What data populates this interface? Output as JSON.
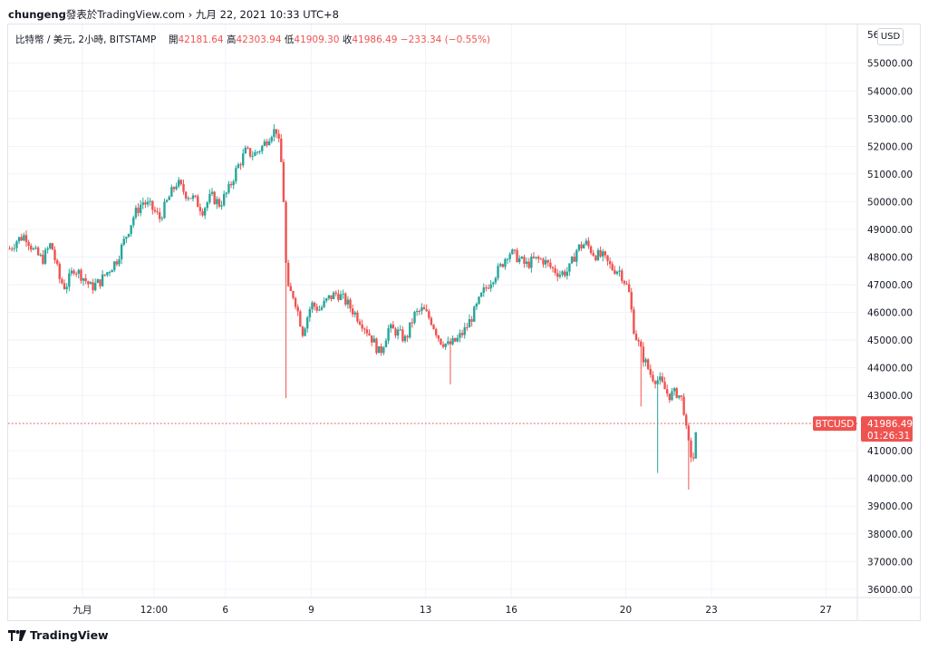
{
  "header": {
    "author": "chungeng",
    "published_text": "發表於TradingView.com",
    "separator": "›",
    "datetime": "九月 22, 2021 10:33 UTC+8"
  },
  "legend": {
    "symbol_text": "比特幣 / 美元, 2小時, BITSTAMP",
    "open_label": "開",
    "open_value": "42181.64",
    "high_label": "高",
    "high_value": "42303.94",
    "low_label": "低",
    "low_value": "41909.30",
    "close_label": "收",
    "close_value": "41986.49",
    "change_text": "−233.34 (−0.55%)"
  },
  "price_axis": {
    "currency_badge": "USD",
    "top_partial_label": "56"
  },
  "last_price": {
    "symbol_tag": "BTCUSD",
    "price": "41986.49",
    "countdown": "01:26:31"
  },
  "branding": {
    "logo_text": "TradingView"
  },
  "colors": {
    "up": "#26a69a",
    "down": "#ef5350",
    "grid": "#f0f3fa",
    "text": "#131722"
  },
  "chart_data": {
    "type": "candlestick",
    "title": "",
    "ylim": [
      35700,
      56400
    ],
    "y_ticks": [
      36000,
      37000,
      38000,
      39000,
      40000,
      41000,
      42000,
      43000,
      44000,
      45000,
      46000,
      47000,
      48000,
      49000,
      50000,
      51000,
      52000,
      53000,
      54000,
      55000
    ],
    "y_tick_labels": [
      "36000.00",
      "37000.00",
      "38000.00",
      "39000.00",
      "40000.00",
      "41000.00",
      "42000.00",
      "43000.00",
      "44000.00",
      "45000.00",
      "46000.00",
      "47000.00",
      "48000.00",
      "49000.00",
      "50000.00",
      "51000.00",
      "52000.00",
      "53000.00",
      "54000.00",
      "55000.00"
    ],
    "x_ticks": [
      "九月",
      "12:00",
      "6",
      "9",
      "13",
      "16",
      "20",
      "23",
      "27"
    ],
    "x_tick_days": [
      1,
      3.5,
      6,
      9,
      13,
      16,
      20,
      23,
      27
    ],
    "x_range_days": [
      -1.6,
      28.1
    ],
    "grid": true,
    "last_price": 41986.49,
    "path": [
      [
        -1.55,
        48300
      ],
      [
        -1.3,
        48600
      ],
      [
        -1.0,
        48800
      ],
      [
        -0.7,
        48200
      ],
      [
        -0.4,
        47900
      ],
      [
        -0.1,
        48500
      ],
      [
        0.2,
        47200
      ],
      [
        0.4,
        46900
      ],
      [
        0.7,
        47600
      ],
      [
        1.0,
        47300
      ],
      [
        1.3,
        46900
      ],
      [
        1.6,
        47100
      ],
      [
        1.9,
        47500
      ],
      [
        2.2,
        47900
      ],
      [
        2.5,
        48700
      ],
      [
        2.8,
        49500
      ],
      [
        3.1,
        50000
      ],
      [
        3.4,
        49800
      ],
      [
        3.7,
        49400
      ],
      [
        4.0,
        50100
      ],
      [
        4.3,
        50700
      ],
      [
        4.6,
        50300
      ],
      [
        4.9,
        50100
      ],
      [
        5.2,
        49700
      ],
      [
        5.5,
        50200
      ],
      [
        5.8,
        49900
      ],
      [
        6.1,
        50400
      ],
      [
        6.4,
        51200
      ],
      [
        6.7,
        51800
      ],
      [
        7.0,
        51700
      ],
      [
        7.3,
        52000
      ],
      [
        7.6,
        52500
      ],
      [
        7.8,
        52600
      ],
      [
        8.0,
        51000
      ],
      [
        8.15,
        46800
      ],
      [
        8.4,
        46600
      ],
      [
        8.7,
        45300
      ],
      [
        9.0,
        46300
      ],
      [
        9.3,
        46100
      ],
      [
        9.6,
        46500
      ],
      [
        9.9,
        46700
      ],
      [
        10.2,
        46400
      ],
      [
        10.5,
        46000
      ],
      [
        10.8,
        45600
      ],
      [
        11.1,
        45100
      ],
      [
        11.4,
        44500
      ],
      [
        11.7,
        45400
      ],
      [
        12.0,
        45300
      ],
      [
        12.3,
        45000
      ],
      [
        12.6,
        45900
      ],
      [
        12.9,
        46100
      ],
      [
        13.2,
        45700
      ],
      [
        13.5,
        45000
      ],
      [
        13.8,
        44800
      ],
      [
        14.1,
        45000
      ],
      [
        14.4,
        45400
      ],
      [
        14.7,
        46000
      ],
      [
        15.0,
        46700
      ],
      [
        15.3,
        47200
      ],
      [
        15.6,
        47600
      ],
      [
        15.9,
        48200
      ],
      [
        16.2,
        48000
      ],
      [
        16.5,
        47700
      ],
      [
        16.8,
        47900
      ],
      [
        17.1,
        47900
      ],
      [
        17.4,
        47600
      ],
      [
        17.7,
        47400
      ],
      [
        18.0,
        47500
      ],
      [
        18.3,
        48300
      ],
      [
        18.6,
        48500
      ],
      [
        18.9,
        48100
      ],
      [
        19.2,
        48000
      ],
      [
        19.5,
        47600
      ],
      [
        19.8,
        47500
      ],
      [
        20.1,
        46800
      ],
      [
        20.3,
        45300
      ],
      [
        20.6,
        44400
      ],
      [
        20.9,
        43700
      ],
      [
        21.2,
        43500
      ],
      [
        21.5,
        43000
      ],
      [
        21.8,
        43100
      ],
      [
        22.0,
        42800
      ],
      [
        22.15,
        41400
      ],
      [
        22.35,
        40600
      ],
      [
        22.5,
        41986
      ]
    ]
  }
}
